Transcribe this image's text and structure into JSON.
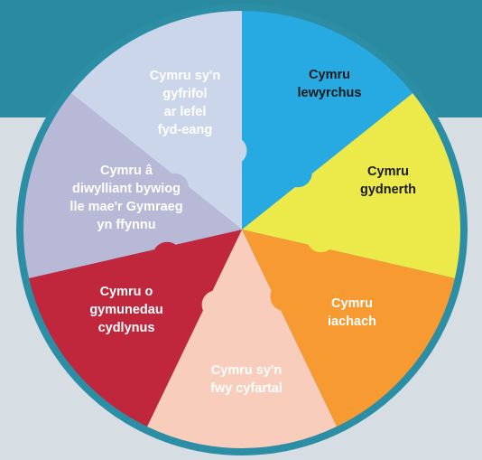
{
  "segments": [
    {
      "lines": [
        "Cymru sy'n",
        "gyfrifol",
        "ar lefel",
        "fyd-eang"
      ],
      "color": "#27a9e1",
      "text_color": "#ffffff"
    },
    {
      "lines": [
        "Cymru",
        "lewyrchus"
      ],
      "color": "#ece94b",
      "text_color": "#1a1a1a"
    },
    {
      "lines": [
        "Cymru",
        "gydnerth"
      ],
      "color": "#f79a32",
      "text_color": "#1a1a1a"
    },
    {
      "lines": [
        "Cymru",
        "iachach"
      ],
      "color": "#f9cdbb",
      "text_color": "#ffffff"
    },
    {
      "lines": [
        "Cymru sy'n",
        "fwy cyfartal"
      ],
      "color": "#c1273c",
      "text_color": "#ffffff"
    },
    {
      "lines": [
        "Cymru o",
        "gymunedau",
        "cydlynus"
      ],
      "color": "#b8b8d7",
      "text_color": "#ffffff"
    },
    {
      "lines": [
        "Cymru â",
        "diwylliant bywiog",
        "lle mae'r Gymraeg",
        "yn ffynnu"
      ],
      "color": "#ccd6ea",
      "text_color": "#ffffff"
    }
  ]
}
